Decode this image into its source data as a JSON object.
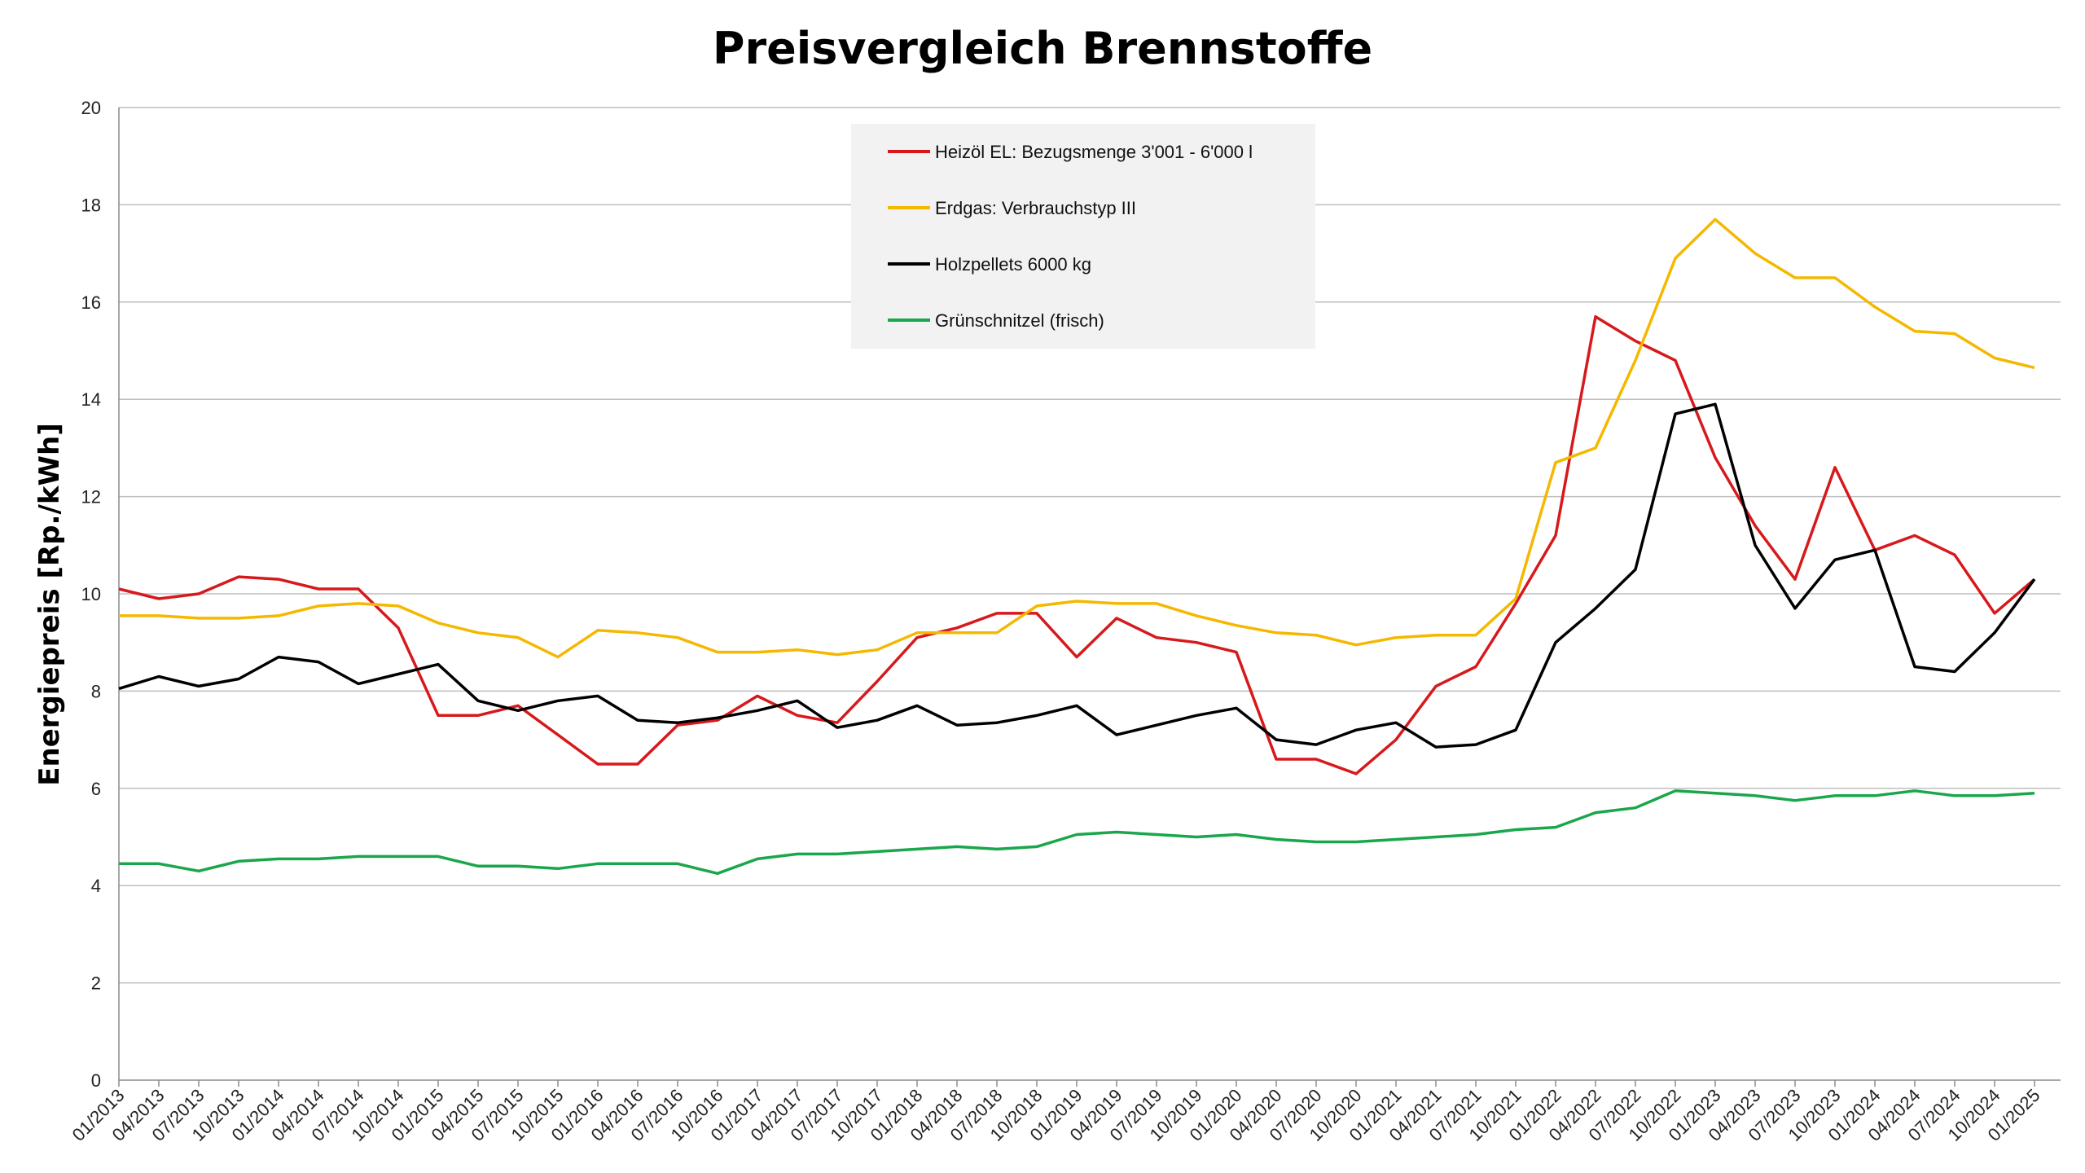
{
  "chart_data": {
    "type": "line",
    "title": "Preisvergleich Brennstoffe",
    "ylabel": "Energiepreis [Rp./kWh]",
    "xlabel": "",
    "ylim": [
      0,
      20
    ],
    "yticks": [
      "0",
      "2",
      "4",
      "6",
      "8",
      "10",
      "12",
      "14",
      "16",
      "18",
      "20"
    ],
    "x_tick_labels": [
      "01/2013",
      "04/2013",
      "07/2013",
      "10/2013",
      "01/2014",
      "04/2014",
      "07/2014",
      "10/2014",
      "01/2015",
      "04/2015",
      "07/2015",
      "10/2015",
      "01/2016",
      "04/2016",
      "07/2016",
      "10/2016",
      "01/2017",
      "04/2017",
      "07/2017",
      "10/2017",
      "01/2018",
      "04/2018",
      "07/2018",
      "10/2018",
      "01/2019",
      "04/2019",
      "07/2019",
      "10/2019",
      "01/2020",
      "04/2020",
      "07/2020",
      "10/2020",
      "01/2021",
      "04/2021",
      "07/2021",
      "10/2021",
      "01/2022",
      "04/2022",
      "07/2022",
      "10/2022",
      "01/2023",
      "04/2023",
      "07/2023",
      "10/2023",
      "01/2024",
      "04/2024",
      "07/2024",
      "10/2024",
      "01/2025"
    ],
    "x": [
      "01/2013",
      "04/2013",
      "07/2013",
      "10/2013",
      "01/2014",
      "04/2014",
      "07/2014",
      "10/2014",
      "01/2015",
      "04/2015",
      "07/2015",
      "10/2015",
      "01/2016",
      "04/2016",
      "07/2016",
      "10/2016",
      "01/2017",
      "04/2017",
      "07/2017",
      "10/2017",
      "01/2018",
      "04/2018",
      "07/2018",
      "10/2018",
      "01/2019",
      "04/2019",
      "07/2019",
      "10/2019",
      "01/2020",
      "04/2020",
      "07/2020",
      "10/2020",
      "01/2021",
      "04/2021",
      "07/2021",
      "10/2021",
      "01/2022",
      "04/2022",
      "07/2022",
      "10/2022",
      "01/2023",
      "04/2023",
      "07/2023",
      "10/2023",
      "01/2024",
      "04/2024",
      "07/2024",
      "10/2024",
      "01/2025"
    ],
    "grid": true,
    "legend_position": "top-center",
    "series": [
      {
        "name": "Heizöl EL: Bezugsmenge 3'001 - 6'000 l",
        "color": "#d7191c",
        "values": [
          10.1,
          9.9,
          10.0,
          10.35,
          10.3,
          10.1,
          10.1,
          9.3,
          7.5,
          7.5,
          7.7,
          7.1,
          6.5,
          6.5,
          7.3,
          7.4,
          7.9,
          7.5,
          7.35,
          8.2,
          9.1,
          9.3,
          9.6,
          9.6,
          8.7,
          9.5,
          9.1,
          9.0,
          8.8,
          6.6,
          6.6,
          6.3,
          7.0,
          8.1,
          8.5,
          9.8,
          11.2,
          15.7,
          15.2,
          14.8,
          12.8,
          11.4,
          10.3,
          12.6,
          10.9,
          11.2,
          10.8,
          9.6,
          10.3
        ]
      },
      {
        "name": "Erdgas: Verbrauchstyp III",
        "color": "#f5b800",
        "values": [
          9.55,
          9.55,
          9.5,
          9.5,
          9.55,
          9.75,
          9.8,
          9.75,
          9.4,
          9.2,
          9.1,
          8.7,
          9.25,
          9.2,
          9.1,
          8.8,
          8.8,
          8.85,
          8.75,
          8.85,
          9.2,
          9.2,
          9.2,
          9.75,
          9.85,
          9.8,
          9.8,
          9.55,
          9.35,
          9.2,
          9.15,
          8.95,
          9.1,
          9.15,
          9.15,
          9.9,
          12.7,
          13.0,
          14.8,
          16.9,
          17.7,
          17.0,
          16.5,
          16.5,
          15.9,
          15.4,
          15.35,
          14.85,
          14.65
        ]
      },
      {
        "name": "Holzpellets 6000 kg",
        "color": "#000000",
        "values": [
          8.05,
          8.3,
          8.1,
          8.25,
          8.7,
          8.6,
          8.15,
          8.35,
          8.55,
          7.8,
          7.6,
          7.8,
          7.9,
          7.4,
          7.35,
          7.45,
          7.6,
          7.8,
          7.25,
          7.4,
          7.7,
          7.3,
          7.35,
          7.5,
          7.7,
          7.1,
          7.3,
          7.5,
          7.65,
          7.0,
          6.9,
          7.2,
          7.35,
          6.85,
          6.9,
          7.2,
          9.0,
          9.7,
          10.5,
          13.7,
          13.9,
          11.0,
          9.7,
          10.7,
          10.9,
          8.5,
          8.4,
          9.2,
          10.3
        ]
      },
      {
        "name": "Grünschnitzel (frisch)",
        "color": "#1aa64a",
        "values": [
          4.45,
          4.45,
          4.3,
          4.5,
          4.55,
          4.55,
          4.6,
          4.6,
          4.6,
          4.4,
          4.4,
          4.35,
          4.45,
          4.45,
          4.45,
          4.25,
          4.55,
          4.65,
          4.65,
          4.7,
          4.75,
          4.8,
          4.75,
          4.8,
          5.05,
          5.1,
          5.05,
          5.0,
          5.05,
          4.95,
          4.9,
          4.9,
          4.95,
          5.0,
          5.05,
          5.15,
          5.2,
          5.5,
          5.6,
          5.95,
          5.9,
          5.85,
          5.75,
          5.85,
          5.85,
          5.95,
          5.85,
          5.85,
          5.9
        ]
      }
    ]
  }
}
